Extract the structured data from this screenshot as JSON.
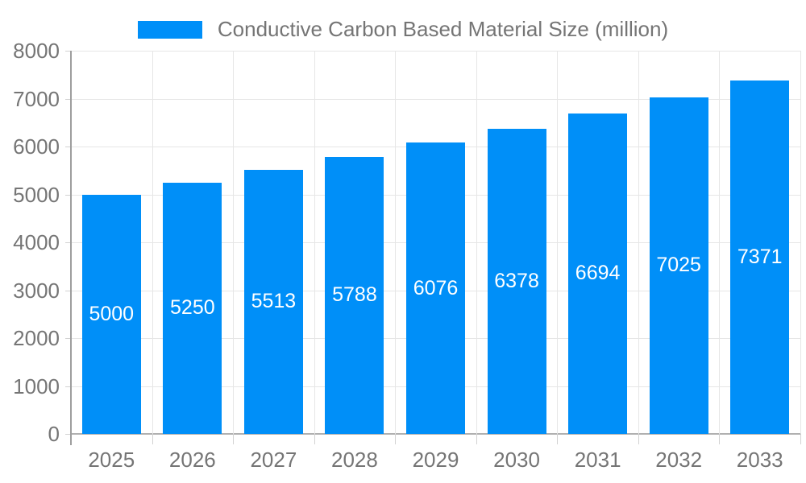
{
  "chart_data": {
    "type": "bar",
    "title": "Conductive Carbon Based Material Size (million)",
    "categories": [
      "2025",
      "2026",
      "2027",
      "2028",
      "2029",
      "2030",
      "2031",
      "2032",
      "2033"
    ],
    "values": [
      5000,
      5250,
      5513,
      5788,
      6076,
      6378,
      6694,
      7025,
      7371
    ],
    "xlabel": "",
    "ylabel": "",
    "ylim": [
      0,
      8000
    ],
    "ytick_step": 1000,
    "ytick_labels": [
      "0",
      "1000",
      "2000",
      "3000",
      "4000",
      "5000",
      "6000",
      "7000",
      "8000"
    ],
    "grid": true,
    "legend_position": "top-center",
    "colors": {
      "bar": "#008FF8",
      "bar_value_label": "#ffffff",
      "axis_text": "#757575",
      "gridline": "#e6e6e6",
      "axis_line": "#9e9e9e",
      "baseline": "#b0b0b0",
      "tick": "#d2d2d2",
      "background": "#ffffff"
    }
  }
}
